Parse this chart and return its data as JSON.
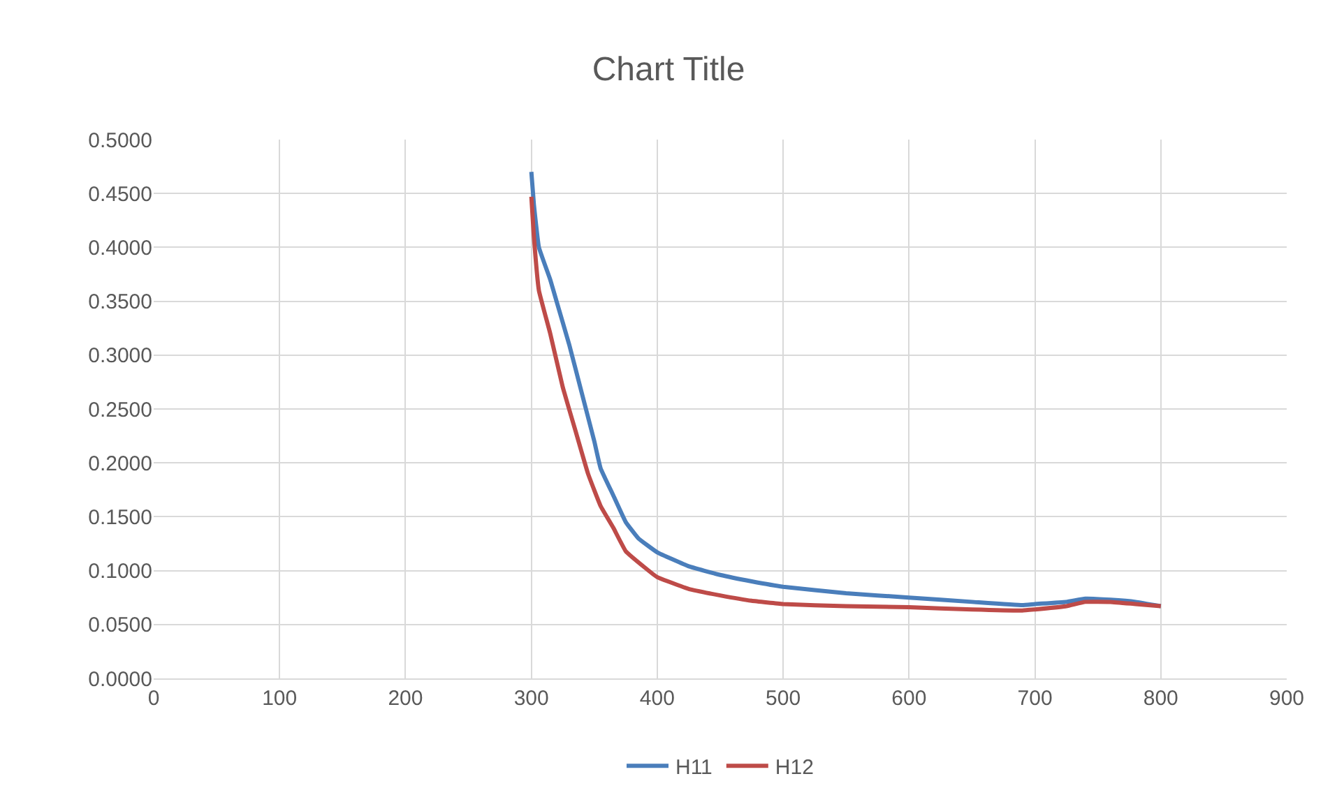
{
  "chart_data": {
    "type": "line",
    "title": "Chart Title",
    "xlim": [
      0,
      900
    ],
    "xticks": [
      0,
      100,
      200,
      300,
      400,
      500,
      600,
      700,
      800,
      900
    ],
    "ylim": [
      0,
      0.5
    ],
    "yticks": [
      {
        "value": 0,
        "label": "0.0000"
      },
      {
        "value": 0.05,
        "label": "0.0500"
      },
      {
        "value": 0.1,
        "label": "0.1000"
      },
      {
        "value": 0.15,
        "label": "0.1500"
      },
      {
        "value": 0.2,
        "label": "0.2000"
      },
      {
        "value": 0.25,
        "label": "0.2500"
      },
      {
        "value": 0.3,
        "label": "0.3000"
      },
      {
        "value": 0.35,
        "label": "0.3500"
      },
      {
        "value": 0.4,
        "label": "0.4000"
      },
      {
        "value": 0.45,
        "label": "0.4500"
      },
      {
        "value": 0.5,
        "label": "0.5000"
      }
    ],
    "grid": true,
    "legend": "bottom",
    "marker": "none",
    "line_style": "solid",
    "series": [
      {
        "name": "H11",
        "color": "#4a7ebb",
        "x": [
          300,
          302,
          306,
          315,
          320,
          330,
          340,
          350,
          355,
          365,
          375,
          385,
          400,
          425,
          450,
          475,
          500,
          550,
          600,
          650,
          690,
          700,
          725,
          740,
          760,
          780,
          800
        ],
        "values": [
          0.47,
          0.44,
          0.4,
          0.37,
          0.35,
          0.31,
          0.265,
          0.22,
          0.195,
          0.17,
          0.145,
          0.13,
          0.117,
          0.104,
          0.096,
          0.09,
          0.085,
          0.079,
          0.075,
          0.071,
          0.068,
          0.069,
          0.071,
          0.074,
          0.073,
          0.071,
          0.067
        ]
      },
      {
        "name": "H12",
        "color": "#be4b48",
        "x": [
          300,
          302,
          306,
          315,
          325,
          335,
          345,
          355,
          365,
          375,
          390,
          400,
          425,
          450,
          475,
          500,
          550,
          600,
          650,
          690,
          700,
          725,
          740,
          760,
          780,
          800
        ],
        "values": [
          0.447,
          0.41,
          0.36,
          0.32,
          0.27,
          0.23,
          0.19,
          0.16,
          0.14,
          0.118,
          0.103,
          0.094,
          0.083,
          0.077,
          0.072,
          0.069,
          0.067,
          0.066,
          0.064,
          0.063,
          0.064,
          0.067,
          0.071,
          0.071,
          0.069,
          0.067
        ]
      }
    ]
  }
}
